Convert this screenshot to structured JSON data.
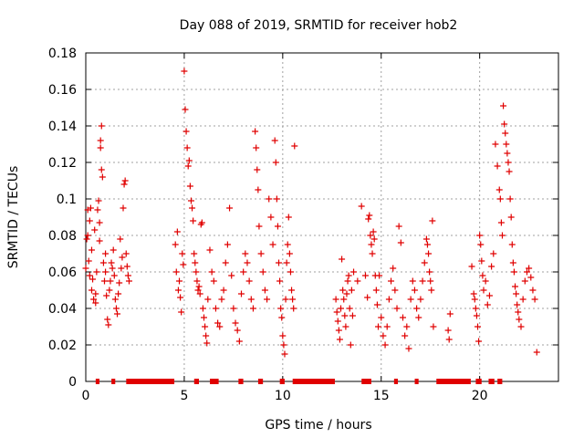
{
  "chart_data": {
    "type": "scatter",
    "title": "Day 088 of 2019, SRMTID for receiver hob2",
    "xlabel": "GPS time / hours",
    "ylabel": "SRMTID / TECUs",
    "xlim": [
      0,
      24
    ],
    "ylim": [
      0,
      0.18
    ],
    "xticks": [
      0,
      5,
      10,
      15,
      20
    ],
    "yticks": [
      0,
      0.02,
      0.04,
      0.06,
      0.08,
      0.1,
      0.12,
      0.14,
      0.16,
      0.18
    ],
    "xtick_labels": [
      "0",
      "5",
      "10",
      "15",
      "20"
    ],
    "ytick_labels": [
      "0",
      "0.02",
      "0.04",
      "0.06",
      "0.08",
      "0.1",
      "0.12",
      "0.14",
      "0.16",
      "0.18"
    ],
    "grid": true,
    "marker": "+",
    "color": "#e00000",
    "series": [
      {
        "name": "SRMTID",
        "points": [
          [
            0.0,
            0.062
          ],
          [
            0.05,
            0.078
          ],
          [
            0.1,
            0.08
          ],
          [
            0.1,
            0.094
          ],
          [
            0.15,
            0.066
          ],
          [
            0.2,
            0.058
          ],
          [
            0.2,
            0.088
          ],
          [
            0.25,
            0.095
          ],
          [
            0.3,
            0.072
          ],
          [
            0.3,
            0.05
          ],
          [
            0.35,
            0.056
          ],
          [
            0.4,
            0.045
          ],
          [
            0.45,
            0.083
          ],
          [
            0.5,
            0.048
          ],
          [
            0.5,
            0.043
          ],
          [
            0.55,
            0.06
          ],
          [
            0.6,
            0.094
          ],
          [
            0.65,
            0.099
          ],
          [
            0.7,
            0.087
          ],
          [
            0.7,
            0.077
          ],
          [
            0.75,
            0.128
          ],
          [
            0.75,
            0.132
          ],
          [
            0.8,
            0.14
          ],
          [
            0.8,
            0.116
          ],
          [
            0.85,
            0.112
          ],
          [
            0.9,
            0.065
          ],
          [
            0.95,
            0.055
          ],
          [
            1.0,
            0.06
          ],
          [
            1.0,
            0.07
          ],
          [
            1.05,
            0.047
          ],
          [
            1.1,
            0.034
          ],
          [
            1.15,
            0.031
          ],
          [
            1.2,
            0.05
          ],
          [
            1.25,
            0.055
          ],
          [
            1.3,
            0.065
          ],
          [
            1.35,
            0.062
          ],
          [
            1.4,
            0.072
          ],
          [
            1.45,
            0.058
          ],
          [
            1.5,
            0.045
          ],
          [
            1.55,
            0.04
          ],
          [
            1.6,
            0.037
          ],
          [
            1.65,
            0.048
          ],
          [
            1.7,
            0.054
          ],
          [
            1.75,
            0.078
          ],
          [
            1.8,
            0.062
          ],
          [
            1.85,
            0.068
          ],
          [
            1.9,
            0.095
          ],
          [
            1.95,
            0.108
          ],
          [
            2.0,
            0.11
          ],
          [
            2.05,
            0.07
          ],
          [
            2.1,
            0.063
          ],
          [
            2.15,
            0.058
          ],
          [
            2.2,
            0.055
          ],
          [
            4.55,
            0.075
          ],
          [
            4.6,
            0.06
          ],
          [
            4.65,
            0.082
          ],
          [
            4.7,
            0.05
          ],
          [
            4.75,
            0.055
          ],
          [
            4.8,
            0.046
          ],
          [
            4.85,
            0.038
          ],
          [
            4.9,
            0.07
          ],
          [
            4.95,
            0.064
          ],
          [
            5.0,
            0.17
          ],
          [
            5.05,
            0.149
          ],
          [
            5.1,
            0.137
          ],
          [
            5.15,
            0.128
          ],
          [
            5.2,
            0.118
          ],
          [
            5.25,
            0.121
          ],
          [
            5.3,
            0.107
          ],
          [
            5.35,
            0.099
          ],
          [
            5.4,
            0.095
          ],
          [
            5.45,
            0.088
          ],
          [
            5.5,
            0.07
          ],
          [
            5.55,
            0.065
          ],
          [
            5.6,
            0.06
          ],
          [
            5.65,
            0.055
          ],
          [
            5.7,
            0.05
          ],
          [
            5.75,
            0.052
          ],
          [
            5.8,
            0.048
          ],
          [
            5.85,
            0.086
          ],
          [
            5.9,
            0.087
          ],
          [
            5.95,
            0.04
          ],
          [
            6.0,
            0.035
          ],
          [
            6.05,
            0.03
          ],
          [
            6.1,
            0.025
          ],
          [
            6.15,
            0.021
          ],
          [
            6.2,
            0.045
          ],
          [
            6.3,
            0.072
          ],
          [
            6.4,
            0.06
          ],
          [
            6.5,
            0.055
          ],
          [
            6.6,
            0.04
          ],
          [
            6.7,
            0.032
          ],
          [
            6.8,
            0.03
          ],
          [
            6.9,
            0.045
          ],
          [
            7.0,
            0.05
          ],
          [
            7.1,
            0.065
          ],
          [
            7.2,
            0.075
          ],
          [
            7.3,
            0.095
          ],
          [
            7.4,
            0.058
          ],
          [
            7.5,
            0.04
          ],
          [
            7.6,
            0.032
          ],
          [
            7.7,
            0.028
          ],
          [
            7.8,
            0.022
          ],
          [
            7.9,
            0.048
          ],
          [
            8.0,
            0.06
          ],
          [
            8.1,
            0.07
          ],
          [
            8.2,
            0.065
          ],
          [
            8.3,
            0.055
          ],
          [
            8.4,
            0.045
          ],
          [
            8.5,
            0.04
          ],
          [
            8.6,
            0.137
          ],
          [
            8.65,
            0.128
          ],
          [
            8.7,
            0.116
          ],
          [
            8.75,
            0.105
          ],
          [
            8.8,
            0.085
          ],
          [
            8.9,
            0.07
          ],
          [
            9.0,
            0.06
          ],
          [
            9.1,
            0.05
          ],
          [
            9.2,
            0.045
          ],
          [
            9.3,
            0.1
          ],
          [
            9.4,
            0.09
          ],
          [
            9.5,
            0.075
          ],
          [
            9.6,
            0.132
          ],
          [
            9.65,
            0.12
          ],
          [
            9.7,
            0.1
          ],
          [
            9.75,
            0.085
          ],
          [
            9.8,
            0.065
          ],
          [
            9.85,
            0.055
          ],
          [
            9.9,
            0.04
          ],
          [
            9.95,
            0.035
          ],
          [
            10.0,
            0.025
          ],
          [
            10.05,
            0.02
          ],
          [
            10.1,
            0.015
          ],
          [
            10.15,
            0.045
          ],
          [
            10.2,
            0.065
          ],
          [
            10.25,
            0.075
          ],
          [
            10.3,
            0.09
          ],
          [
            10.35,
            0.07
          ],
          [
            10.4,
            0.06
          ],
          [
            10.45,
            0.05
          ],
          [
            10.5,
            0.045
          ],
          [
            10.55,
            0.04
          ],
          [
            10.6,
            0.129
          ],
          [
            12.7,
            0.045
          ],
          [
            12.75,
            0.038
          ],
          [
            12.8,
            0.033
          ],
          [
            12.85,
            0.028
          ],
          [
            12.9,
            0.023
          ],
          [
            12.95,
            0.04
          ],
          [
            13.0,
            0.067
          ],
          [
            13.05,
            0.05
          ],
          [
            13.1,
            0.045
          ],
          [
            13.15,
            0.036
          ],
          [
            13.2,
            0.03
          ],
          [
            13.25,
            0.048
          ],
          [
            13.3,
            0.055
          ],
          [
            13.35,
            0.058
          ],
          [
            13.4,
            0.04
          ],
          [
            13.45,
            0.02
          ],
          [
            13.5,
            0.05
          ],
          [
            13.55,
            0.036
          ],
          [
            13.6,
            0.06
          ],
          [
            13.8,
            0.055
          ],
          [
            14.0,
            0.096
          ],
          [
            14.2,
            0.058
          ],
          [
            14.3,
            0.046
          ],
          [
            14.35,
            0.089
          ],
          [
            14.4,
            0.091
          ],
          [
            14.45,
            0.08
          ],
          [
            14.5,
            0.075
          ],
          [
            14.55,
            0.07
          ],
          [
            14.6,
            0.082
          ],
          [
            14.65,
            0.078
          ],
          [
            14.7,
            0.058
          ],
          [
            14.75,
            0.05
          ],
          [
            14.8,
            0.042
          ],
          [
            14.85,
            0.03
          ],
          [
            14.9,
            0.058
          ],
          [
            15.0,
            0.035
          ],
          [
            15.1,
            0.025
          ],
          [
            15.2,
            0.02
          ],
          [
            15.3,
            0.03
          ],
          [
            15.4,
            0.045
          ],
          [
            15.5,
            0.055
          ],
          [
            15.6,
            0.062
          ],
          [
            15.7,
            0.05
          ],
          [
            15.8,
            0.04
          ],
          [
            15.9,
            0.085
          ],
          [
            16.0,
            0.076
          ],
          [
            16.1,
            0.035
          ],
          [
            16.2,
            0.025
          ],
          [
            16.3,
            0.03
          ],
          [
            16.4,
            0.018
          ],
          [
            16.5,
            0.045
          ],
          [
            16.6,
            0.055
          ],
          [
            16.7,
            0.05
          ],
          [
            16.8,
            0.04
          ],
          [
            16.9,
            0.035
          ],
          [
            17.0,
            0.045
          ],
          [
            17.1,
            0.055
          ],
          [
            17.2,
            0.065
          ],
          [
            17.3,
            0.078
          ],
          [
            17.35,
            0.075
          ],
          [
            17.4,
            0.07
          ],
          [
            17.45,
            0.06
          ],
          [
            17.5,
            0.055
          ],
          [
            17.55,
            0.05
          ],
          [
            17.6,
            0.088
          ],
          [
            17.65,
            0.03
          ],
          [
            18.4,
            0.028
          ],
          [
            18.45,
            0.023
          ],
          [
            18.5,
            0.037
          ],
          [
            19.6,
            0.063
          ],
          [
            19.7,
            0.048
          ],
          [
            19.75,
            0.045
          ],
          [
            19.8,
            0.04
          ],
          [
            19.85,
            0.036
          ],
          [
            19.9,
            0.03
          ],
          [
            19.95,
            0.022
          ],
          [
            20.0,
            0.08
          ],
          [
            20.05,
            0.075
          ],
          [
            20.1,
            0.066
          ],
          [
            20.15,
            0.058
          ],
          [
            20.2,
            0.05
          ],
          [
            20.3,
            0.055
          ],
          [
            20.4,
            0.042
          ],
          [
            20.5,
            0.047
          ],
          [
            20.6,
            0.063
          ],
          [
            20.7,
            0.07
          ],
          [
            20.8,
            0.13
          ],
          [
            20.9,
            0.118
          ],
          [
            21.0,
            0.105
          ],
          [
            21.05,
            0.1
          ],
          [
            21.1,
            0.087
          ],
          [
            21.15,
            0.08
          ],
          [
            21.2,
            0.151
          ],
          [
            21.25,
            0.141
          ],
          [
            21.3,
            0.136
          ],
          [
            21.35,
            0.13
          ],
          [
            21.4,
            0.125
          ],
          [
            21.45,
            0.12
          ],
          [
            21.5,
            0.115
          ],
          [
            21.55,
            0.1
          ],
          [
            21.6,
            0.09
          ],
          [
            21.65,
            0.075
          ],
          [
            21.7,
            0.065
          ],
          [
            21.75,
            0.06
          ],
          [
            21.8,
            0.052
          ],
          [
            21.85,
            0.048
          ],
          [
            21.9,
            0.042
          ],
          [
            21.95,
            0.038
          ],
          [
            22.0,
            0.034
          ],
          [
            22.1,
            0.03
          ],
          [
            22.2,
            0.045
          ],
          [
            22.3,
            0.055
          ],
          [
            22.4,
            0.06
          ],
          [
            22.5,
            0.062
          ],
          [
            22.6,
            0.057
          ],
          [
            22.7,
            0.05
          ],
          [
            22.8,
            0.045
          ],
          [
            22.9,
            0.016
          ]
        ]
      }
    ],
    "zero_intervals": [
      [
        0.55,
        0.65
      ],
      [
        1.35,
        1.45
      ],
      [
        2.1,
        4.45
      ],
      [
        5.55,
        5.7
      ],
      [
        6.35,
        6.7
      ],
      [
        7.8,
        7.95
      ],
      [
        8.8,
        8.95
      ],
      [
        9.9,
        10.05
      ],
      [
        10.55,
        12.6
      ],
      [
        14.05,
        14.45
      ],
      [
        15.7,
        15.8
      ],
      [
        16.75,
        16.85
      ],
      [
        17.85,
        19.5
      ],
      [
        19.85,
        20.05
      ],
      [
        20.5,
        20.7
      ],
      [
        20.95,
        21.1
      ]
    ]
  }
}
